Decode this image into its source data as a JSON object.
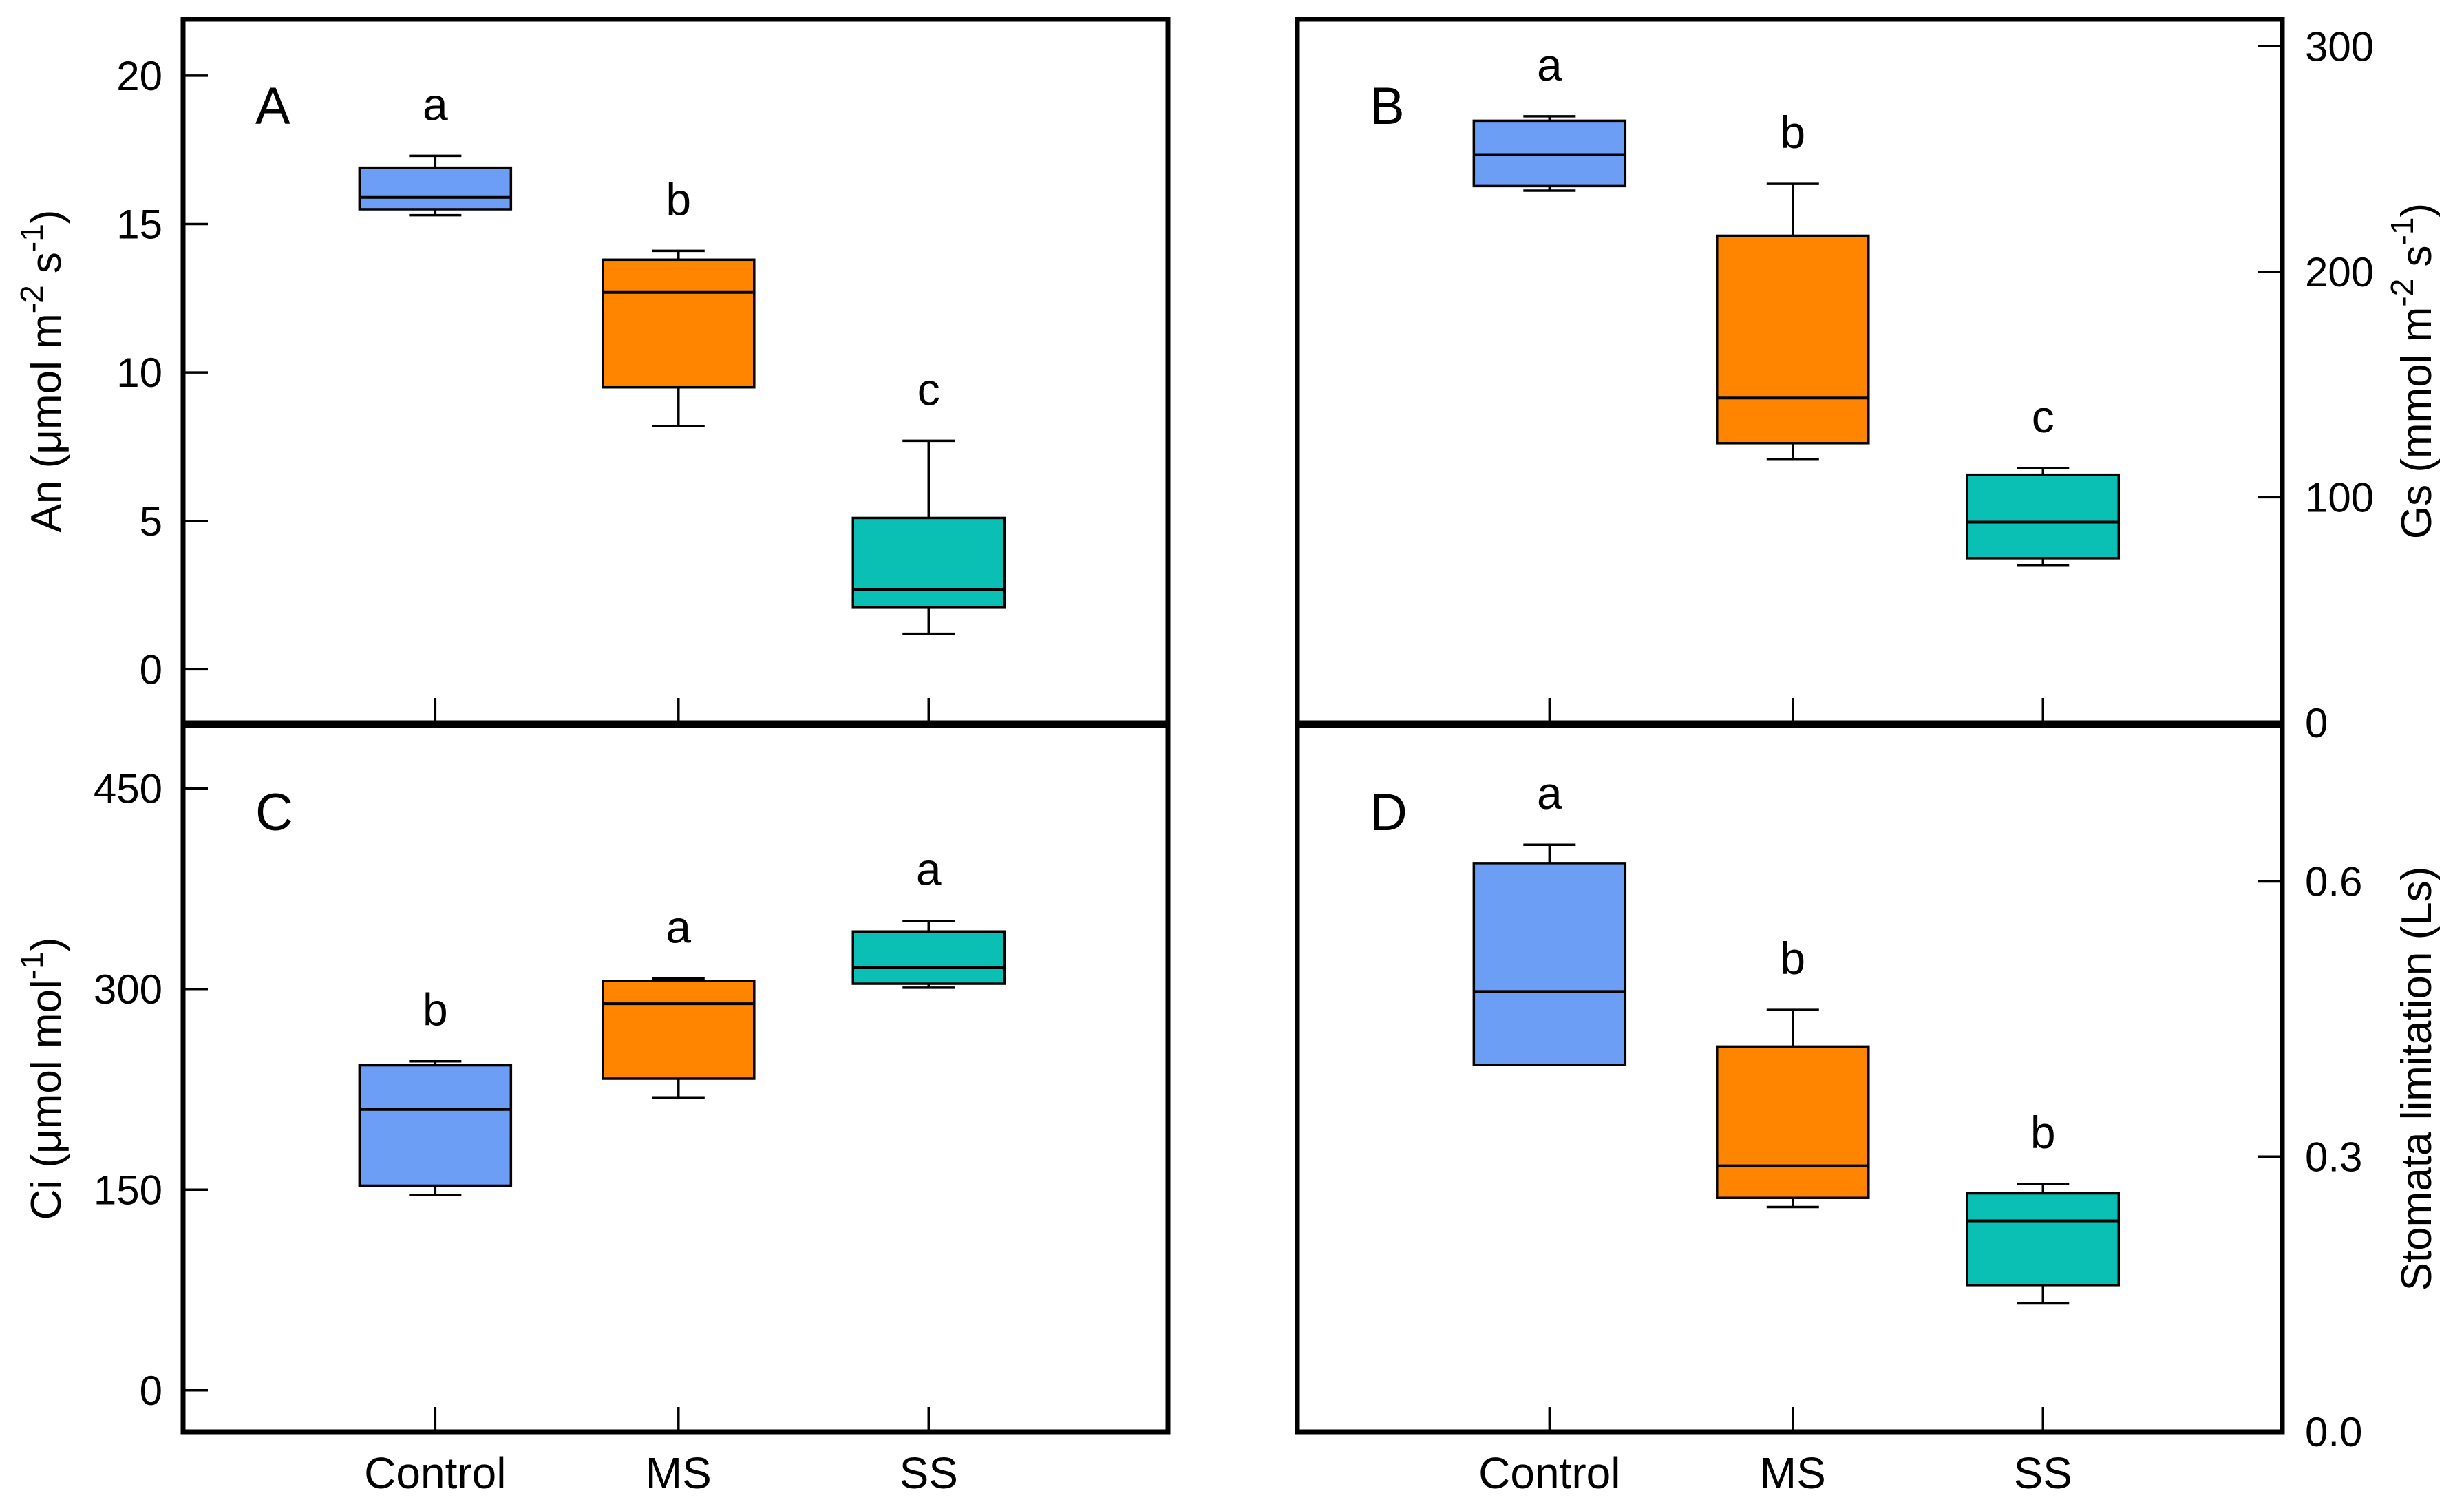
{
  "figure": {
    "background": "#ffffff",
    "frame_color": "#000000",
    "categories": [
      "Control",
      "MS",
      "SS"
    ],
    "category_colors": [
      "#6D9EF6",
      "#FF8400",
      "#0ABFB4"
    ]
  },
  "chart_data": [
    {
      "type": "box",
      "id": "A",
      "panel_letter": "A",
      "position": "top-left",
      "ylabel_parts": [
        {
          "text": "An (μmol m"
        },
        {
          "text": "-2",
          "super": true
        },
        {
          "text": " s"
        },
        {
          "text": "-1",
          "super": true
        },
        {
          "text": ")"
        }
      ],
      "yticks": [
        0,
        5,
        10,
        15,
        20
      ],
      "ytick_format": "int",
      "ytick_side": "left",
      "ylim": [
        -1.8,
        21.9
      ],
      "grid": false,
      "categories": [
        "Control",
        "MS",
        "SS"
      ],
      "show_xtick_labels": false,
      "boxes": [
        {
          "category": "Control",
          "letter": "a",
          "color": "#6D9EF6",
          "min": 15.3,
          "q1": 15.5,
          "median": 15.9,
          "q3": 16.9,
          "max": 17.3
        },
        {
          "category": "MS",
          "letter": "b",
          "color": "#FF8400",
          "min": 8.2,
          "q1": 9.5,
          "median": 12.7,
          "q3": 13.8,
          "max": 14.1
        },
        {
          "category": "SS",
          "letter": "c",
          "color": "#0ABFB4",
          "min": 1.2,
          "q1": 2.1,
          "median": 2.7,
          "q3": 5.1,
          "max": 7.7
        }
      ]
    },
    {
      "type": "box",
      "id": "B",
      "panel_letter": "B",
      "position": "top-right",
      "ylabel_parts": [
        {
          "text": "Gs (mmol m"
        },
        {
          "text": "-2",
          "super": true
        },
        {
          "text": " s"
        },
        {
          "text": "-1",
          "super": true
        },
        {
          "text": ")"
        }
      ],
      "yticks": [
        0,
        100,
        200,
        300
      ],
      "ytick_format": "int",
      "ytick_side": "right",
      "ylim": [
        0,
        312
      ],
      "grid": false,
      "categories": [
        "Control",
        "MS",
        "SS"
      ],
      "show_xtick_labels": false,
      "boxes": [
        {
          "category": "Control",
          "letter": "a",
          "color": "#6D9EF6",
          "min": 236,
          "q1": 238,
          "median": 252,
          "q3": 267,
          "max": 269
        },
        {
          "category": "MS",
          "letter": "b",
          "color": "#FF8400",
          "min": 117,
          "q1": 124,
          "median": 144,
          "q3": 216,
          "max": 239
        },
        {
          "category": "SS",
          "letter": "c",
          "color": "#0ABFB4",
          "min": 70,
          "q1": 73,
          "median": 89,
          "q3": 110,
          "max": 113
        }
      ]
    },
    {
      "type": "box",
      "id": "C",
      "panel_letter": "C",
      "position": "bottom-left",
      "ylabel_parts": [
        {
          "text": "Ci (μmol mol"
        },
        {
          "text": "-1",
          "super": true
        },
        {
          "text": ")"
        }
      ],
      "yticks": [
        0,
        150,
        300,
        450
      ],
      "ytick_format": "int",
      "ytick_side": "left",
      "ylim": [
        -31,
        497
      ],
      "grid": false,
      "categories": [
        "Control",
        "MS",
        "SS"
      ],
      "show_xtick_labels": true,
      "boxes": [
        {
          "category": "Control",
          "letter": "b",
          "color": "#6D9EF6",
          "min": 146,
          "q1": 153,
          "median": 210,
          "q3": 243,
          "max": 246
        },
        {
          "category": "MS",
          "letter": "a",
          "color": "#FF8400",
          "min": 219,
          "q1": 233,
          "median": 289,
          "q3": 306,
          "max": 308
        },
        {
          "category": "SS",
          "letter": "a",
          "color": "#0ABFB4",
          "min": 301,
          "q1": 304,
          "median": 316,
          "q3": 343,
          "max": 351
        }
      ]
    },
    {
      "type": "box",
      "id": "D",
      "panel_letter": "D",
      "position": "bottom-right",
      "ylabel_parts": [
        {
          "text": "Stomata limitation (Ls)"
        }
      ],
      "yticks": [
        0,
        0.3,
        0.6
      ],
      "ytick_format": "1dp",
      "ytick_side": "right",
      "ylim": [
        0,
        0.77
      ],
      "grid": false,
      "categories": [
        "Control",
        "MS",
        "SS"
      ],
      "show_xtick_labels": true,
      "boxes": [
        {
          "category": "Control",
          "letter": "a",
          "color": "#6D9EF6",
          "min": 0.4,
          "q1": 0.4,
          "median": 0.48,
          "q3": 0.62,
          "max": 0.64
        },
        {
          "category": "MS",
          "letter": "b",
          "color": "#FF8400",
          "min": 0.245,
          "q1": 0.255,
          "median": 0.29,
          "q3": 0.42,
          "max": 0.46
        },
        {
          "category": "SS",
          "letter": "b",
          "color": "#0ABFB4",
          "min": 0.14,
          "q1": 0.16,
          "median": 0.23,
          "q3": 0.26,
          "max": 0.27
        }
      ]
    }
  ]
}
